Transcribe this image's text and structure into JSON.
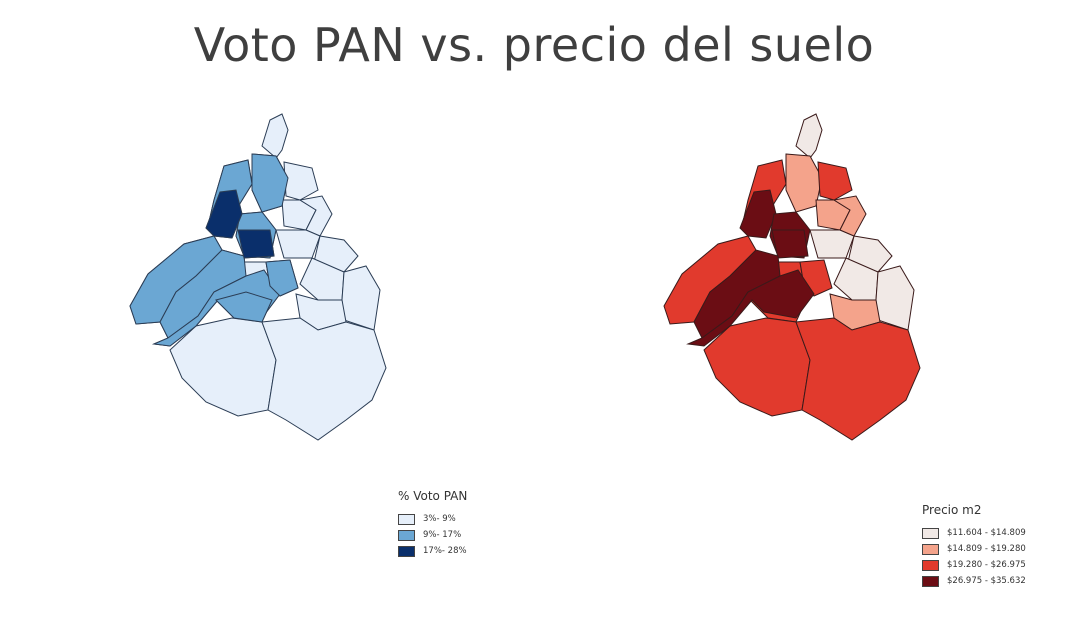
{
  "title": "Voto PAN vs. precio del suelo",
  "maps": [
    {
      "name": "voto-pan",
      "legend_title": "% Voto PAN",
      "classes": [
        {
          "label": "3%- 9%",
          "color": "#e6effa"
        },
        {
          "label": "9%- 17%",
          "color": "#6ba7d3"
        },
        {
          "label": "17%- 28%",
          "color": "#0a2f6b"
        }
      ]
    },
    {
      "name": "precio-m2",
      "legend_title": "Precio m2",
      "classes": [
        {
          "label": "$11.604 - $14.809",
          "color": "#f1e9e6"
        },
        {
          "label": "$14.809 - $19.280",
          "color": "#f4a38b"
        },
        {
          "label": "$19.280 - $26.975",
          "color": "#e13a2d"
        },
        {
          "label": "$26.975 - $35.632",
          "color": "#6b0d14"
        }
      ]
    }
  ]
}
